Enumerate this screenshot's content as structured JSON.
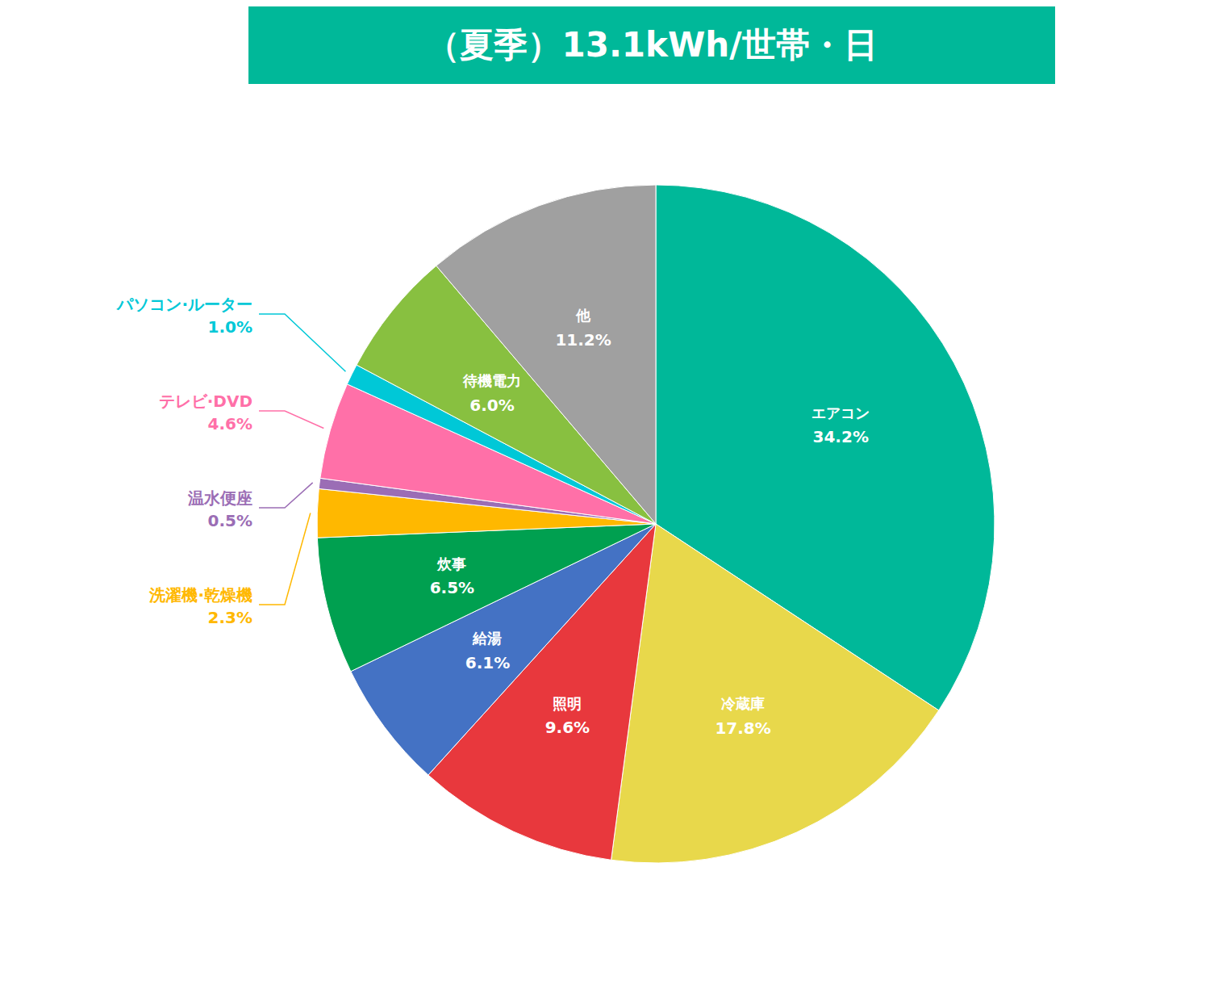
{
  "chart_data": {
    "type": "pie",
    "title": "（夏季）13.1kWh/世帯・日",
    "categories": [
      "エアコン",
      "冷蔵庫",
      "照明",
      "給湯",
      "炊事",
      "洗濯機·乾燥機",
      "温水便座",
      "テレビ·DVD",
      "パソコン·ルーター",
      "待機電力",
      "他"
    ],
    "values": [
      34.2,
      17.8,
      9.6,
      6.1,
      6.5,
      2.3,
      0.5,
      4.6,
      1.0,
      6.0,
      11.2
    ],
    "value_labels": [
      "34.2%",
      "17.8%",
      "9.6%",
      "6.1%",
      "6.5%",
      "2.3%",
      "0.5%",
      "4.6%",
      "1.0%",
      "6.0%",
      "11.2%"
    ],
    "colors": [
      "#00B899",
      "#E8D84B",
      "#E8383D",
      "#4472C4",
      "#00A050",
      "#FFB800",
      "#9B6DB5",
      "#FF70A8",
      "#00C8D7",
      "#88C040",
      "#A0A0A0"
    ],
    "data_labels": true
  }
}
